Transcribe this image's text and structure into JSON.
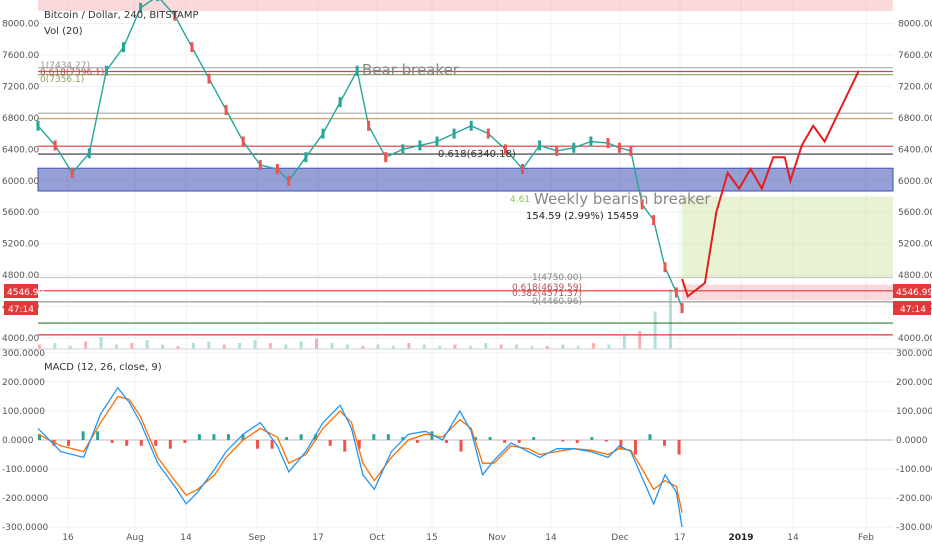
{
  "chart_data": [
    {
      "type": "candlestick",
      "symbol_title": "Bitcoin / Dollar, 240, BITSTAMP",
      "volume_label": "Vol (20)",
      "ylim": [
        3860,
        8300
      ],
      "y_ticks": [
        "8000.00",
        "7600.00",
        "7200.00",
        "6800.00",
        "6400.00",
        "6000.00",
        "5600.00",
        "5200.00",
        "4800.00",
        "4400.00",
        "4000.00"
      ],
      "right_y_ticks": [
        "8000.00",
        "7600.00",
        "7200.00",
        "6800.00",
        "6400.00",
        "6000.00",
        "5600.00",
        "5200.00",
        "4800.00",
        "4400.00",
        "4000.00"
      ],
      "x_ticks": [
        "16",
        "Aug",
        "14",
        "Sep",
        "17",
        "Oct",
        "15",
        "Nov",
        "14",
        "Dec",
        "17",
        "2019",
        "14",
        "Feb"
      ],
      "price_path": [
        [
          0,
          6700
        ],
        [
          6,
          6450
        ],
        [
          12,
          6100
        ],
        [
          18,
          6350
        ],
        [
          24,
          7400
        ],
        [
          30,
          7700
        ],
        [
          36,
          8200
        ],
        [
          42,
          8350
        ],
        [
          48,
          8100
        ],
        [
          54,
          7700
        ],
        [
          60,
          7300
        ],
        [
          66,
          6900
        ],
        [
          72,
          6500
        ],
        [
          78,
          6200
        ],
        [
          84,
          6150
        ],
        [
          88,
          6000
        ],
        [
          94,
          6300
        ],
        [
          100,
          6600
        ],
        [
          106,
          7000
        ],
        [
          112,
          7400
        ],
        [
          116,
          6700
        ],
        [
          122,
          6300
        ],
        [
          128,
          6400
        ],
        [
          134,
          6450
        ],
        [
          140,
          6500
        ],
        [
          146,
          6600
        ],
        [
          152,
          6700
        ],
        [
          158,
          6600
        ],
        [
          164,
          6400
        ],
        [
          170,
          6150
        ],
        [
          176,
          6450
        ],
        [
          182,
          6380
        ],
        [
          188,
          6420
        ],
        [
          194,
          6500
        ],
        [
          200,
          6480
        ],
        [
          204,
          6420
        ],
        [
          208,
          6380
        ],
        [
          212,
          5700
        ],
        [
          216,
          5500
        ],
        [
          220,
          4900
        ],
        [
          224,
          4580
        ],
        [
          226,
          4380
        ]
      ],
      "volume": [
        3,
        4,
        2,
        5,
        8,
        3,
        4,
        6,
        3,
        2,
        4,
        5,
        3,
        4,
        6,
        4,
        3,
        5,
        7,
        4,
        3,
        2,
        3,
        2,
        4,
        3,
        2,
        3,
        2,
        4,
        3,
        3,
        2,
        2,
        3,
        2,
        4,
        3,
        9,
        12,
        25,
        40
      ],
      "horizontal_levels": [
        {
          "y": 7440,
          "color": "#b5b5b5"
        },
        {
          "y": 7390,
          "color": "#c05050"
        },
        {
          "y": 7350,
          "color": "#8aa05a"
        },
        {
          "y": 6860,
          "color": "#aaaaaa"
        },
        {
          "y": 6790,
          "color": "#c8a050"
        },
        {
          "y": 6440,
          "color": "#e0383b"
        },
        {
          "y": 6340,
          "color": "#333333"
        },
        {
          "y": 4770,
          "color": "#c9c9c9"
        },
        {
          "y": 4600,
          "color": "#e0383b"
        },
        {
          "y": 4460,
          "color": "#999999"
        },
        {
          "y": 4190,
          "color": "#2e7d32"
        },
        {
          "y": 4040,
          "color": "#e0383b"
        }
      ],
      "zones": [
        {
          "y1": 6160,
          "y2": 5870,
          "fill": "rgba(63,81,181,0.55)",
          "stroke": "#3f51b5"
        },
        {
          "y1": 8300,
          "y2": 8160,
          "fill": "rgba(244,143,149,0.35)",
          "stroke": "none"
        },
        {
          "y1": 5800,
          "y2": 4760,
          "fill": "rgba(205,228,157,0.45)",
          "stroke": "none",
          "from_bar": 226
        },
        {
          "y1": 4680,
          "y2": 4480,
          "fill": "rgba(244,143,149,0.35)",
          "stroke": "none",
          "from_bar": 226
        }
      ],
      "projection_path": [
        [
          226,
          4750
        ],
        [
          228,
          4530
        ],
        [
          234,
          4700
        ],
        [
          238,
          5600
        ],
        [
          242,
          6100
        ],
        [
          246,
          5900
        ],
        [
          250,
          6150
        ],
        [
          254,
          5900
        ],
        [
          258,
          6300
        ],
        [
          262,
          6300
        ],
        [
          264,
          6000
        ],
        [
          268,
          6450
        ],
        [
          272,
          6700
        ],
        [
          276,
          6500
        ],
        [
          288,
          7400
        ]
      ],
      "annotations": {
        "bear_breaker": "Bear breaker",
        "weekly_breaker": "Weekly bearish breaker",
        "fib_green": "4.61",
        "measure": "154.59 (2.99%) 15459",
        "fib_mid": "0.618(6340.18)",
        "fib_left_1": "1(7434.27)",
        "fib_left_2": "0.618(7396.1)",
        "fib_left_3": "0(7356.1)",
        "fib_right_1": "1(4750.00)",
        "fib_right_2": "0.618(4639.59)",
        "fib_right_3": "0.382(4571.37)",
        "fib_right_4": "0(4460.96)"
      },
      "last_price": "4546.99",
      "countdown": "47:14",
      "last_price_color": "#e0383b"
    },
    {
      "type": "bar+line",
      "label": "MACD (12, 26, close, 9)",
      "ylim": [
        -310,
        310
      ],
      "y_ticks": [
        "300.0000",
        "200.0000",
        "100.0000",
        "0.0000",
        "-100.0000",
        "-200.0000",
        "-300.0000"
      ],
      "macd_line": [
        [
          0,
          40
        ],
        [
          8,
          -40
        ],
        [
          16,
          -60
        ],
        [
          22,
          90
        ],
        [
          28,
          180
        ],
        [
          32,
          130
        ],
        [
          36,
          60
        ],
        [
          42,
          -80
        ],
        [
          48,
          -160
        ],
        [
          52,
          -220
        ],
        [
          56,
          -180
        ],
        [
          62,
          -100
        ],
        [
          66,
          -40
        ],
        [
          72,
          20
        ],
        [
          78,
          60
        ],
        [
          84,
          -20
        ],
        [
          88,
          -110
        ],
        [
          94,
          -40
        ],
        [
          100,
          60
        ],
        [
          106,
          120
        ],
        [
          110,
          40
        ],
        [
          114,
          -120
        ],
        [
          118,
          -170
        ],
        [
          124,
          -40
        ],
        [
          130,
          20
        ],
        [
          136,
          30
        ],
        [
          142,
          0
        ],
        [
          148,
          100
        ],
        [
          152,
          30
        ],
        [
          156,
          -120
        ],
        [
          160,
          -70
        ],
        [
          166,
          -10
        ],
        [
          172,
          -40
        ],
        [
          176,
          -60
        ],
        [
          182,
          -30
        ],
        [
          188,
          -30
        ],
        [
          194,
          -40
        ],
        [
          200,
          -60
        ],
        [
          204,
          -20
        ],
        [
          208,
          -40
        ],
        [
          212,
          -130
        ],
        [
          216,
          -220
        ],
        [
          220,
          -120
        ],
        [
          224,
          -180
        ],
        [
          226,
          -300
        ]
      ],
      "signal_line": [
        [
          0,
          20
        ],
        [
          8,
          -20
        ],
        [
          16,
          -40
        ],
        [
          22,
          60
        ],
        [
          28,
          150
        ],
        [
          32,
          140
        ],
        [
          36,
          80
        ],
        [
          42,
          -60
        ],
        [
          48,
          -140
        ],
        [
          52,
          -190
        ],
        [
          56,
          -170
        ],
        [
          62,
          -120
        ],
        [
          66,
          -60
        ],
        [
          72,
          0
        ],
        [
          78,
          40
        ],
        [
          84,
          10
        ],
        [
          88,
          -80
        ],
        [
          94,
          -50
        ],
        [
          100,
          40
        ],
        [
          106,
          100
        ],
        [
          110,
          60
        ],
        [
          114,
          -80
        ],
        [
          118,
          -140
        ],
        [
          124,
          -60
        ],
        [
          130,
          0
        ],
        [
          136,
          20
        ],
        [
          142,
          10
        ],
        [
          148,
          70
        ],
        [
          152,
          40
        ],
        [
          156,
          -80
        ],
        [
          160,
          -80
        ],
        [
          166,
          -20
        ],
        [
          172,
          -30
        ],
        [
          176,
          -50
        ],
        [
          182,
          -40
        ],
        [
          188,
          -30
        ],
        [
          194,
          -35
        ],
        [
          200,
          -50
        ],
        [
          204,
          -30
        ],
        [
          208,
          -35
        ],
        [
          212,
          -100
        ],
        [
          216,
          -170
        ],
        [
          220,
          -140
        ],
        [
          224,
          -160
        ],
        [
          226,
          -250
        ]
      ],
      "histogram": [
        20,
        -20,
        -20,
        30,
        30,
        -10,
        -20,
        -20,
        -20,
        -30,
        -10,
        20,
        20,
        20,
        20,
        -30,
        -30,
        10,
        20,
        20,
        -20,
        -40,
        -30,
        20,
        20,
        10,
        -10,
        30,
        -10,
        -40,
        10,
        10,
        -10,
        -10,
        10,
        0,
        -5,
        -10,
        10,
        -5,
        -30,
        -50,
        20,
        -20,
        -50
      ],
      "macd_color": "#2196f3",
      "signal_color": "#ff6d00",
      "hist_pos_color": "#26a69a",
      "hist_neg_color": "#ef5350"
    }
  ]
}
